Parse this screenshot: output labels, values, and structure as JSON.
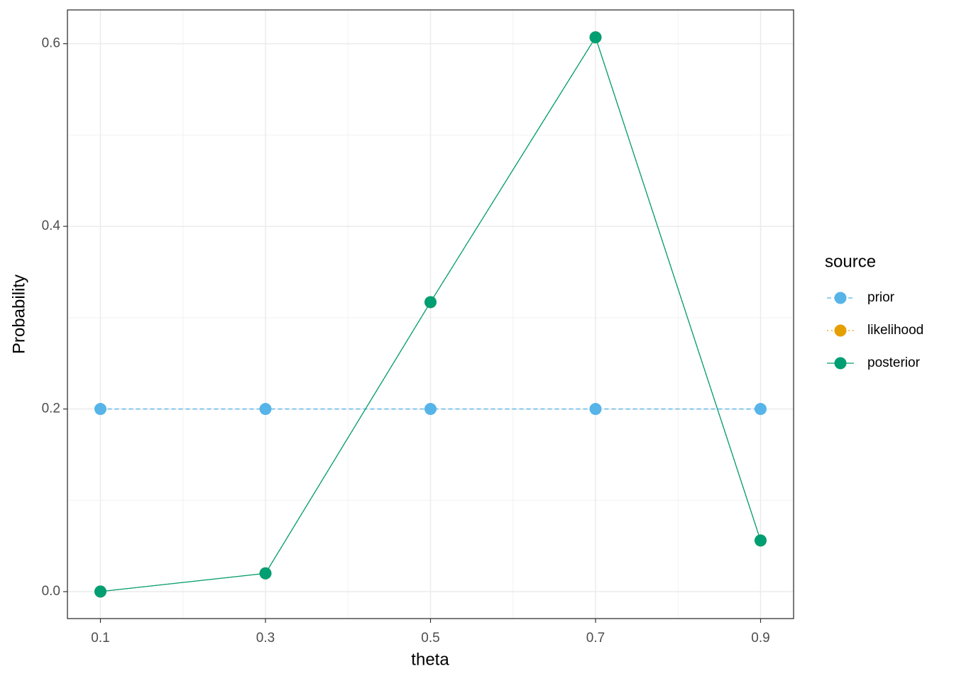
{
  "chart_data": {
    "type": "line",
    "x_label": "theta",
    "y_label": "Probability",
    "x": [
      0.1,
      0.3,
      0.5,
      0.7,
      0.9
    ],
    "series": [
      {
        "name": "prior",
        "color": "#56B4E9",
        "linestyle": "dashed",
        "values": [
          0.2,
          0.2,
          0.2,
          0.2,
          0.2
        ]
      },
      {
        "name": "likelihood",
        "color": "#E69F00",
        "linestyle": "dotted",
        "values": [
          0.0001,
          0.02,
          0.317,
          0.607,
          0.056
        ]
      },
      {
        "name": "posterior",
        "color": "#009E73",
        "linestyle": "solid",
        "values": [
          0.0001,
          0.02,
          0.317,
          0.607,
          0.056
        ]
      }
    ],
    "legend_title": "source",
    "legend_position": "right",
    "xlim": [
      0.06,
      0.94
    ],
    "ylim": [
      -0.0295,
      0.637
    ],
    "xticks": [
      0.1,
      0.3,
      0.5,
      0.7,
      0.9
    ],
    "yticks": [
      {
        "value": 0,
        "label": "0.0"
      },
      0.2,
      0.4,
      0.6
    ],
    "grid": true
  }
}
